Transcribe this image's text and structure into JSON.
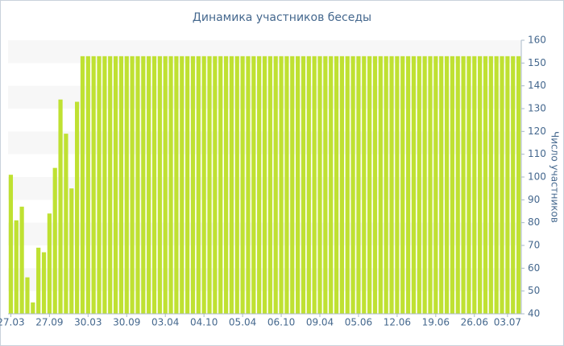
{
  "chart_data": {
    "type": "bar",
    "title": "Динамика участников беседы",
    "y_label": "Число участников",
    "categories": [
      "27.03",
      null,
      null,
      null,
      null,
      null,
      null,
      "27.09",
      null,
      null,
      null,
      null,
      null,
      null,
      "30.03",
      null,
      null,
      null,
      null,
      null,
      null,
      "30.09",
      null,
      null,
      null,
      null,
      null,
      null,
      "03.04",
      null,
      null,
      null,
      null,
      null,
      null,
      "04.10",
      null,
      null,
      null,
      null,
      null,
      null,
      "05.04",
      null,
      null,
      null,
      null,
      null,
      null,
      "06.10",
      null,
      null,
      null,
      null,
      null,
      null,
      "09.04",
      null,
      null,
      null,
      null,
      null,
      null,
      "05.06",
      null,
      null,
      null,
      null,
      null,
      null,
      "12.06",
      null,
      null,
      null,
      null,
      null,
      null,
      "19.06",
      null,
      null,
      null,
      null,
      null,
      null,
      "26.06",
      null,
      null,
      null,
      null,
      null,
      "03.07",
      null,
      null
    ],
    "values": [
      101,
      81,
      87,
      56,
      45,
      69,
      67,
      84,
      104,
      134,
      119,
      95,
      133,
      153,
      153,
      153,
      153,
      153,
      153,
      153,
      153,
      153,
      153,
      153,
      153,
      153,
      153,
      153,
      153,
      153,
      153,
      153,
      153,
      153,
      153,
      153,
      153,
      153,
      153,
      153,
      153,
      153,
      153,
      153,
      153,
      153,
      153,
      153,
      153,
      153,
      153,
      153,
      153,
      153,
      153,
      153,
      153,
      153,
      153,
      153,
      153,
      153,
      153,
      153,
      153,
      153,
      153,
      153,
      153,
      153,
      153,
      153,
      153,
      153,
      153,
      153,
      153,
      153,
      153,
      153,
      153,
      153,
      153,
      153,
      153,
      153,
      153,
      153,
      153,
      153,
      153,
      153,
      153
    ],
    "color": "#bfe132",
    "ylim": [
      40,
      160
    ],
    "yticks": [
      40,
      50,
      60,
      70,
      80,
      90,
      100,
      110,
      120,
      130,
      140,
      150,
      160
    ],
    "y_axis_side": "right",
    "grid": "bands"
  }
}
